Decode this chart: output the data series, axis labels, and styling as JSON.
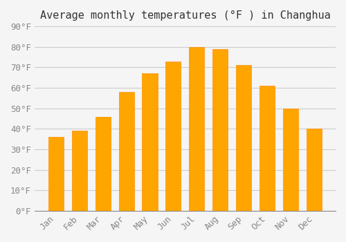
{
  "title": "Average monthly temperatures (°F ) in Changhua",
  "months": [
    "Jan",
    "Feb",
    "Mar",
    "Apr",
    "May",
    "Jun",
    "Jul",
    "Aug",
    "Sep",
    "Oct",
    "Nov",
    "Dec"
  ],
  "values": [
    36,
    39,
    46,
    58,
    67,
    73,
    80,
    79,
    71,
    61,
    50,
    40
  ],
  "bar_color": "#FFA500",
  "bar_edge_color": "#FF8C00",
  "ylim": [
    0,
    90
  ],
  "yticks": [
    0,
    10,
    20,
    30,
    40,
    50,
    60,
    70,
    80,
    90
  ],
  "background_color": "#f5f5f5",
  "grid_color": "#cccccc",
  "title_fontsize": 11,
  "tick_fontsize": 9,
  "font_family": "monospace"
}
